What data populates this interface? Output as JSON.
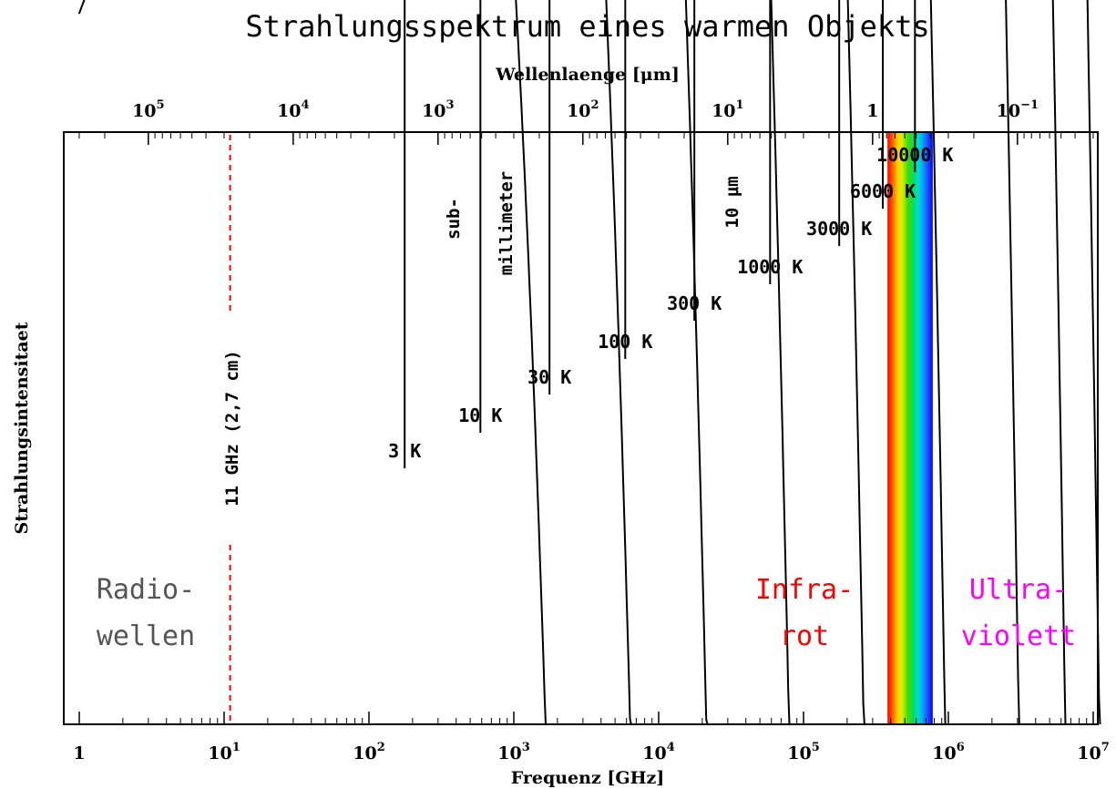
{
  "chart_data": {
    "type": "line",
    "title": "Strahlungsspektrum eines warmen Objekts",
    "xlabel": "Frequenz [GHz]",
    "x2label": "Wellenlaenge [μm]",
    "ylabel": "Strahlungsintensitaet",
    "x_scale": "log",
    "xlim": [
      0.8,
      12000000
    ],
    "x_ticks": [
      {
        "value": 1,
        "base": "1",
        "exp": ""
      },
      {
        "value": 10,
        "base": "10",
        "exp": "1"
      },
      {
        "value": 100,
        "base": "10",
        "exp": "2"
      },
      {
        "value": 1000,
        "base": "10",
        "exp": "3"
      },
      {
        "value": 10000,
        "base": "10",
        "exp": "4"
      },
      {
        "value": 100000,
        "base": "10",
        "exp": "5"
      },
      {
        "value": 1000000,
        "base": "10",
        "exp": "6"
      },
      {
        "value": 10000000,
        "base": "10",
        "exp": "7"
      }
    ],
    "x2_ticks": [
      {
        "wavelength_um": 100000,
        "base": "10",
        "exp": "5"
      },
      {
        "wavelength_um": 10000,
        "base": "10",
        "exp": "4"
      },
      {
        "wavelength_um": 1000,
        "base": "10",
        "exp": "3"
      },
      {
        "wavelength_um": 100,
        "base": "10",
        "exp": "2"
      },
      {
        "wavelength_um": 10,
        "base": "10",
        "exp": "1"
      },
      {
        "wavelength_um": 1,
        "base": "1",
        "exp": ""
      },
      {
        "wavelength_um": 0.1,
        "base": "10",
        "exp": "−1"
      }
    ],
    "series": [
      {
        "name": "3 K",
        "temperature_K": 3
      },
      {
        "name": "10 K",
        "temperature_K": 10
      },
      {
        "name": "30 K",
        "temperature_K": 30
      },
      {
        "name": "100 K",
        "temperature_K": 100
      },
      {
        "name": "300 K",
        "temperature_K": 300
      },
      {
        "name": "1000 K",
        "temperature_K": 1000
      },
      {
        "name": "3000 K",
        "temperature_K": 3000
      },
      {
        "name": "6000 K",
        "temperature_K": 6000
      },
      {
        "name": "10000 K",
        "temperature_K": 10000
      }
    ],
    "annotations": {
      "line_11ghz": {
        "frequency_GHz": 11,
        "label": "11 GHz (2,7 cm)",
        "color": "#ff0000"
      },
      "submm_label_1": "sub-",
      "submm_label_2": "millimeter",
      "tenmicron_label": "10 μm",
      "radio_1": "Radio-",
      "radio_2": "wellen",
      "infra_1": "Infra-",
      "infra_2": "rot",
      "ultra_1": "Ultra-",
      "ultra_2": "violett"
    },
    "colors": {
      "radio": "#555555",
      "infrared": "#ff0000",
      "ultraviolet": "#ff00ff",
      "curves": "#000000"
    },
    "visible_band_GHz": [
      380000,
      780000
    ],
    "legend": "none",
    "grid": false
  }
}
